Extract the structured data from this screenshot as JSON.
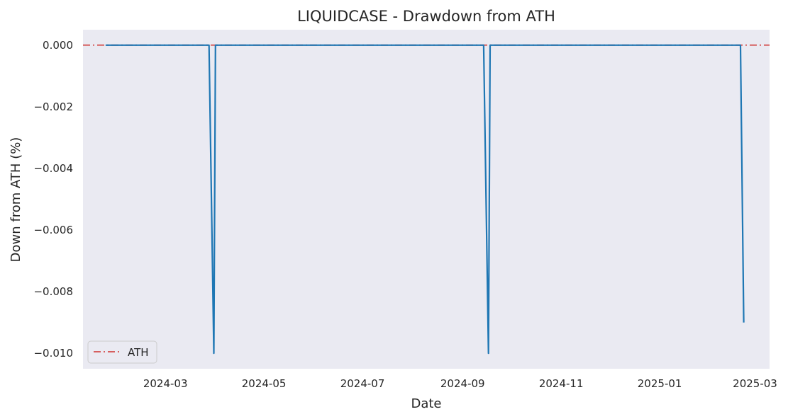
{
  "chart_data": {
    "type": "line",
    "title": "LIQUIDCASE - Drawdown from ATH",
    "xlabel": "Date",
    "ylabel": "Down from ATH (%)",
    "xlim": [
      "2024-01-10",
      "2025-03-10"
    ],
    "ylim": [
      -0.0105,
      0.0005
    ],
    "x_ticks": [
      "2024-03",
      "2024-05",
      "2024-07",
      "2024-09",
      "2024-11",
      "2025-01",
      "2025-03"
    ],
    "y_ticks": [
      "0.000",
      "−0.002",
      "−0.004",
      "−0.006",
      "−0.008",
      "−0.010"
    ],
    "grid": false,
    "legend_position": "lower-left",
    "reference_line": {
      "name": "ATH",
      "y": 0,
      "style": "dash-dot",
      "color": "#d65f5f"
    },
    "series": [
      {
        "color": "#1f77b4",
        "x": [
          "2024-01-24",
          "2024-03-28",
          "2024-03-31",
          "2024-04-01",
          "2024-09-14",
          "2024-09-17",
          "2024-09-18",
          "2025-02-20",
          "2025-02-22"
        ],
        "values": [
          0,
          0,
          -0.01,
          0,
          0,
          -0.01,
          0,
          0,
          -0.009
        ]
      }
    ]
  }
}
